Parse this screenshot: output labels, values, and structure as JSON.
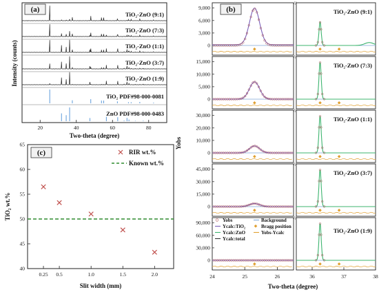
{
  "panel_a": {
    "letter": "(a)",
    "xlabel": "Two-theta (degree)",
    "ylabel": "Intensity (counts)",
    "xticks": [
      "20",
      "40",
      "60",
      "80"
    ],
    "pattern_labels": [
      "TiO₂-ZnO (9:1)",
      "TiO₂-ZnO (7:3)",
      "TiO₂-ZnO (1:1)",
      "TiO₂-ZnO (3:7)",
      "TiO₂-ZnO (1:9)"
    ],
    "ref_labels": [
      "TiO₂  PDF#98-000-0081",
      "ZnO  PDF#98-000-0483"
    ],
    "colors": {
      "pattern": "#222222",
      "tio2_ref": "#4a8fd6",
      "zno_ref": "#4a8fd6"
    }
  },
  "panel_b": {
    "letter": "(b)",
    "xlabel": "Two-theta (degree)",
    "ylabel": "Yobs",
    "xticks": [
      "24",
      "25",
      "26",
      "36",
      "37",
      "38"
    ],
    "rows": [
      {
        "label": "TiO₂-ZnO (9:1)",
        "yticks": [
          "0",
          "3,000",
          "6,000",
          "9,000"
        ]
      },
      {
        "label": "TiO₂-ZnO (7:3)",
        "yticks": [
          "0",
          "5,000",
          "10,000",
          "15,000"
        ]
      },
      {
        "label": "TiO₂-ZnO (1:1)",
        "yticks": [
          "0",
          "10,000",
          "20,000",
          "30,000"
        ]
      },
      {
        "label": "TiO₂-ZnO (3:7)",
        "yticks": [
          "0",
          "15,000",
          "30,000",
          "45,000"
        ]
      },
      {
        "label": "TiO₂-ZnO (1:9)",
        "yticks": [
          "0",
          "30,000",
          "60,000",
          "90,000"
        ]
      }
    ],
    "legend": [
      "Yobs",
      "Background",
      "Ycalc:TiO₂",
      "Bragg position",
      "Ycalc:ZnO",
      "Yobs-Ycalc",
      "Ycalc:total"
    ],
    "colors": {
      "yobs": "#b05a5a",
      "background": "#7fa8d8",
      "tio2": "#7b5fb8",
      "zno": "#3cb46e",
      "total": "#333333",
      "bragg": "#e0a030",
      "diff": "#e0a030"
    }
  },
  "chart_data": [
    {
      "type": "scatter",
      "title": "",
      "xlabel": "Slit width (mm)",
      "ylabel": "TiO₂ wt.%",
      "xticks": [
        "0.25",
        "0.5",
        "1.0",
        "1.5",
        "2.0"
      ],
      "yticks": [
        "40",
        "45",
        "50",
        "55",
        "60",
        "65"
      ],
      "xlim": [
        0,
        2.3
      ],
      "ylim": [
        40,
        65
      ],
      "legend_position": "top-right",
      "series": [
        {
          "name": "RIR wt.%",
          "x": [
            0.25,
            0.5,
            1.0,
            1.5,
            2.0
          ],
          "values": [
            56.5,
            53.3,
            51.0,
            47.8,
            43.3
          ],
          "color": "#c0504d"
        },
        {
          "name": "Known wt.%",
          "kind": "hline",
          "values": [
            50
          ],
          "color": "#2e8b2e"
        }
      ],
      "letter": "(c)"
    }
  ]
}
